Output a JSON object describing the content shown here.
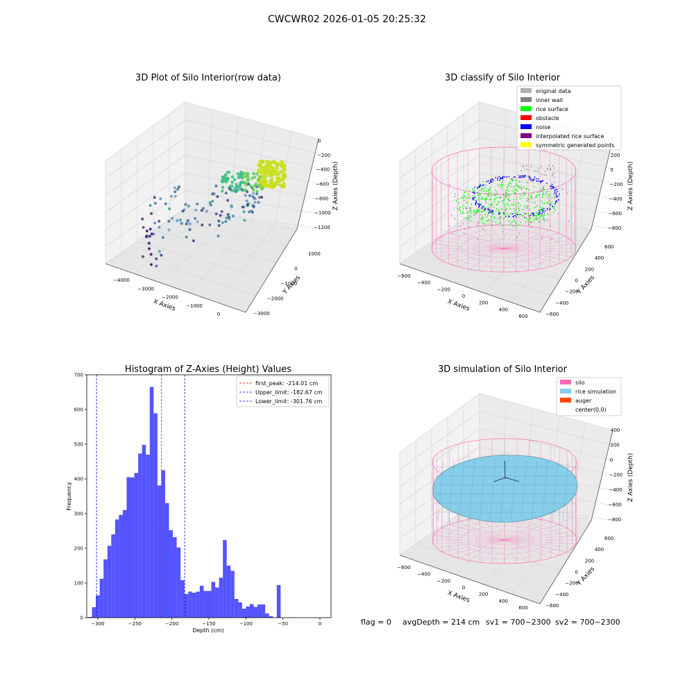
{
  "suptitle": "CWCWR02 2026-01-05 20:25:32",
  "status_line": {
    "flag": "flag = 0",
    "avg_depth": "avgDepth = 214 cm",
    "sv1": "sv1 = 700~2300",
    "sv2": "sv2 = 700~2300"
  },
  "colors": {
    "pink": "#ff69b4",
    "green": "#00ff00",
    "blue": "#0000ff",
    "gray": "#aaaaaa",
    "hist": "#4b4bff",
    "red": "#ff0000",
    "skyblue": "#87ceeb",
    "orange": "#ff4500"
  },
  "panels": {
    "raw": {
      "title": "3D Plot of Silo Interior(row data)",
      "xlabel": "X Axies",
      "ylabel": "Y Axies",
      "zlabel": "Z Axies (Depth)",
      "x_ticks": [
        "−4000",
        "−3000",
        "−2000",
        "−1000",
        "0"
      ],
      "y_ticks": [
        "1000",
        "0",
        "−1000",
        "−2000",
        "−3000"
      ],
      "z_ticks": [
        "0",
        "−200",
        "−400",
        "−600",
        "−800",
        "−1000",
        "−1200"
      ]
    },
    "classify": {
      "title": "3D classify of Silo Interior",
      "xlabel": "X Axies",
      "ylabel": "Y Axies",
      "zlabel": "Z Axies (Depth)",
      "x_ticks": [
        "−600",
        "−400",
        "−200",
        "0",
        "200",
        "400",
        "600"
      ],
      "y_ticks": [
        "600",
        "400",
        "200",
        "0",
        "−200",
        "−400",
        "−600"
      ],
      "z_ticks": [
        "200",
        "0",
        "−200",
        "−400",
        "−600",
        "−800"
      ],
      "z_top_partial": "00",
      "legend": [
        {
          "label": "original data",
          "color": "#b0b0b0"
        },
        {
          "label": "inner wall",
          "color": "#808080"
        },
        {
          "label": "rice surface",
          "color": "#00ff00"
        },
        {
          "label": "obstacle",
          "color": "#ff0000"
        },
        {
          "label": "noise",
          "color": "#0000ff"
        },
        {
          "label": "interpolated rice surface",
          "color": "#800080"
        },
        {
          "label": "symmetric generated points",
          "color": "#ffff00"
        }
      ]
    },
    "simulation": {
      "title": "3D simulation of Silo Interior",
      "xlabel": "X Axies",
      "ylabel": "Y Axies",
      "zlabel": "Z Axies (Depth)",
      "x_ticks": [
        "−600",
        "−400",
        "−200",
        "0",
        "200",
        "400",
        "600"
      ],
      "y_ticks": [
        "600",
        "400",
        "200",
        "0",
        "−200",
        "−400",
        "−600"
      ],
      "z_ticks": [
        "400",
        "200",
        "0",
        "−200",
        "−400",
        "−600",
        "−800"
      ],
      "legend": [
        {
          "label": "silo",
          "color": "#ff69b4"
        },
        {
          "label": "rice simulation",
          "color": "#87ceeb"
        },
        {
          "label": "auger",
          "color": "#ff4500"
        },
        {
          "label": "center(0,0)",
          "color": ""
        }
      ]
    }
  },
  "chart_data": [
    {
      "type": "bar",
      "title": "Histogram of Z-Axies (Height) Values",
      "xlabel": "Depth (cm)",
      "ylabel": "Frequency",
      "xlim": [
        -315,
        15
      ],
      "ylim": [
        0,
        700
      ],
      "x_ticks": [
        -300,
        -250,
        -200,
        -150,
        -100,
        -50,
        0
      ],
      "x_tick_labels": [
        "−300",
        "−250",
        "−200",
        "−150",
        "−100",
        "−50",
        "0"
      ],
      "y_ticks": [
        0,
        100,
        200,
        300,
        400,
        500,
        600,
        700
      ],
      "y_tick_labels": [
        "0",
        "100",
        "200",
        "300",
        "400",
        "500",
        "600",
        "700"
      ],
      "bin_edges_start": -313.1,
      "bin_width": 5.2,
      "values": [
        2,
        30,
        64,
        112,
        168,
        207,
        240,
        283,
        296,
        310,
        405,
        404,
        417,
        473,
        498,
        470,
        665,
        589,
        381,
        425,
        330,
        252,
        232,
        202,
        108,
        68,
        75,
        72,
        75,
        92,
        77,
        77,
        103,
        87,
        115,
        224,
        150,
        135,
        54,
        44,
        26,
        32,
        39,
        31,
        38,
        38,
        12,
        4,
        0,
        94
      ],
      "reference_lines": [
        {
          "label": "first_peak: -214.01 cm",
          "x": -214.01,
          "color": "#ff0000"
        },
        {
          "label": "Upper_limit: -182.67 cm",
          "x": -182.67,
          "color": "#0000ff"
        },
        {
          "label": "Lower_limit: -301.76 cm",
          "x": -301.76,
          "color": "#0000ff"
        }
      ],
      "legend_position": "upper right"
    }
  ]
}
